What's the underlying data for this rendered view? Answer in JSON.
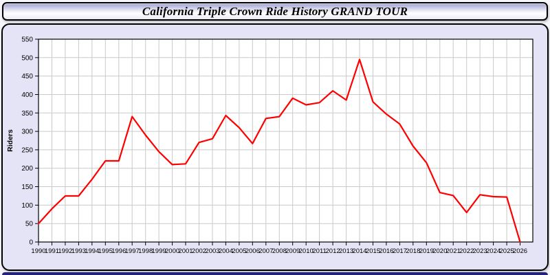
{
  "header": {
    "title": "California Triple Crown Ride History GRAND TOUR"
  },
  "chart_data": {
    "type": "line",
    "title": "California Triple Crown Ride History GRAND TOUR",
    "xlabel": "",
    "ylabel": "Riders",
    "x": [
      1990,
      1991,
      1992,
      1993,
      1994,
      1995,
      1996,
      1997,
      1998,
      1999,
      2000,
      2001,
      2002,
      2003,
      2004,
      2005,
      2006,
      2007,
      2008,
      2009,
      2010,
      2011,
      2012,
      2013,
      2014,
      2015,
      2016,
      2017,
      2018,
      2019,
      2020,
      2021,
      2022,
      2023,
      2024,
      2025,
      2026
    ],
    "values": [
      50,
      90,
      125,
      125,
      170,
      220,
      220,
      340,
      290,
      245,
      210,
      212,
      270,
      280,
      343,
      310,
      267,
      335,
      340,
      390,
      372,
      378,
      410,
      385,
      495,
      380,
      347,
      320,
      260,
      215,
      134,
      126,
      80,
      128,
      123,
      122,
      0
    ],
    "ylim": [
      0,
      550
    ],
    "ytick_step": 50,
    "grid": true,
    "legend": "none",
    "line_color": "#ff0000"
  },
  "colors": {
    "panel_background": "#e4e4f6",
    "plot_background": "#ffffff",
    "gridline": "#c9c9c9",
    "footer_bar": "#23237a",
    "series_line": "#ff0000"
  }
}
